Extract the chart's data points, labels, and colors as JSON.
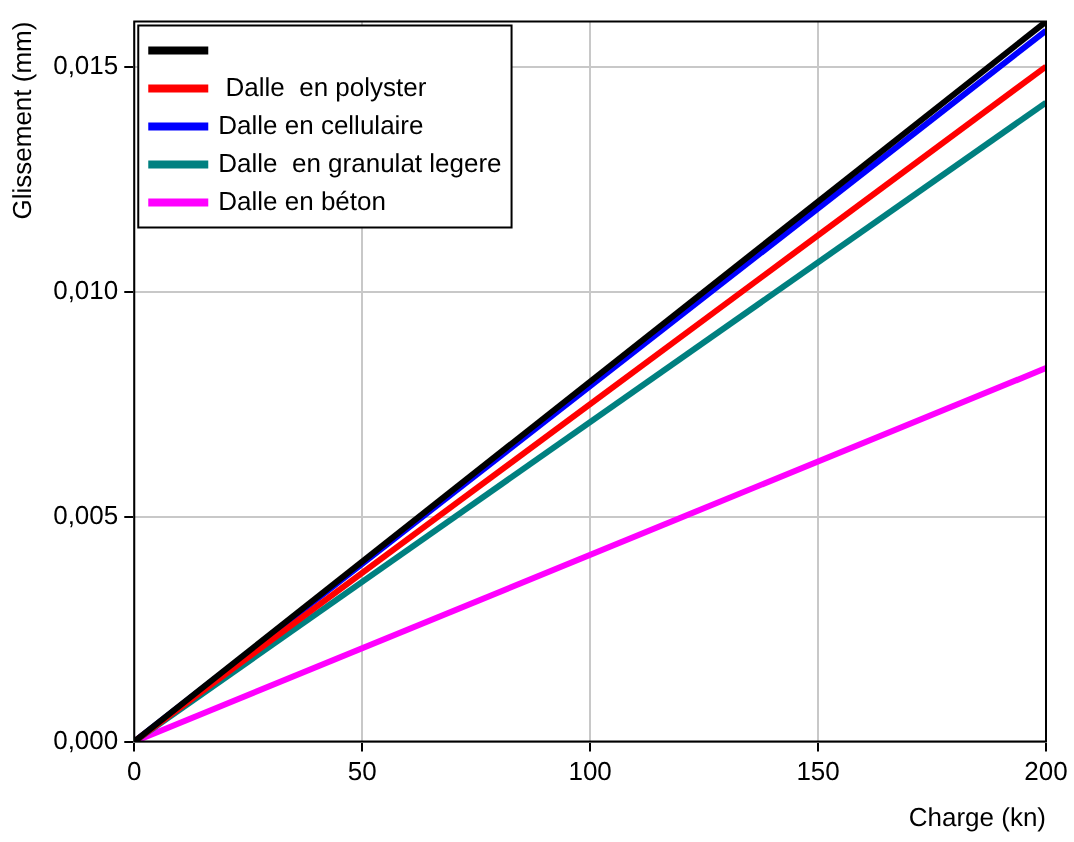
{
  "chart_data": {
    "type": "line",
    "xlabel": "Charge (kn)",
    "ylabel": "Glissement (mm)",
    "x": [
      0,
      200
    ],
    "series": [
      {
        "color": "#000000",
        "values": [
          0,
          0.016
        ]
      },
      {
        "name": " Dalle  en polyster",
        "color": "#ff0000",
        "values": [
          0,
          0.015
        ]
      },
      {
        "name": "Dalle en cellulaire",
        "color": "#0000ff",
        "values": [
          0,
          0.0158
        ]
      },
      {
        "name": "Dalle  en granulat legere",
        "color": "#008080",
        "values": [
          0,
          0.0142
        ]
      },
      {
        "name": "Dalle en béton",
        "color": "#ff00ff",
        "values": [
          0,
          0.0083
        ]
      }
    ],
    "xlim": [
      0,
      200
    ],
    "xticks": [
      0,
      50,
      100,
      150,
      200
    ],
    "ylim": [
      0,
      0.016
    ],
    "yticks": [
      {
        "value": 0,
        "label": "0,000"
      },
      {
        "value": 0.005,
        "label": "0,005"
      },
      {
        "value": 0.01,
        "label": "0,010"
      },
      {
        "value": 0.015,
        "label": "0,015"
      }
    ],
    "grid": true,
    "legend": "top left",
    "marker": "none",
    "line_style": "solid"
  }
}
